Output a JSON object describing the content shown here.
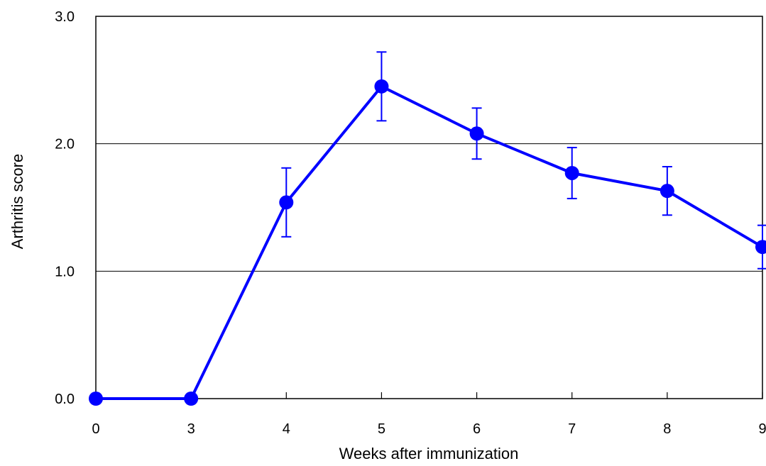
{
  "chart_data": {
    "type": "line",
    "title": "",
    "xlabel": "Weeks after immunization",
    "ylabel": "Arthritis score",
    "x_categories": [
      "0",
      "3",
      "4",
      "5",
      "6",
      "7",
      "8",
      "9"
    ],
    "ylim": [
      0,
      3
    ],
    "y_ticks": [
      "0.0",
      "1.0",
      "2.0",
      "3.0"
    ],
    "grid": "horizontal",
    "color": "#0000ff",
    "series": [
      {
        "values": [
          0,
          0,
          1.54,
          2.45,
          2.08,
          1.77,
          1.63,
          1.19
        ],
        "errors": [
          0,
          0,
          0.27,
          0.27,
          0.2,
          0.2,
          0.19,
          0.17
        ]
      }
    ]
  }
}
